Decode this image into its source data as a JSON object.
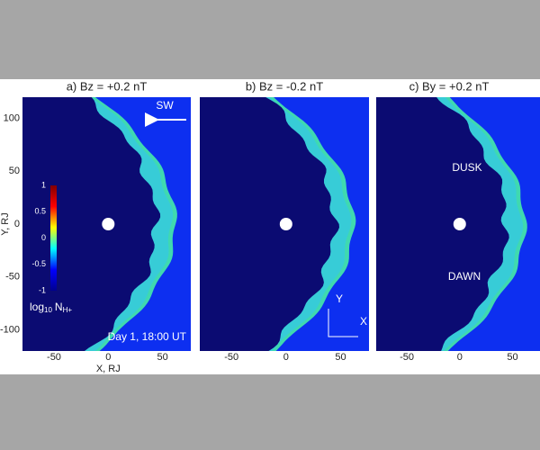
{
  "chart_data": [
    {
      "type": "image",
      "title": "a) Bz = +0.2 nT",
      "xlabel": "X, RJ",
      "ylabel": "Y, RJ",
      "xlim": [
        -79,
        76
      ],
      "ylim": [
        -120,
        120
      ],
      "xticks": [
        -50,
        0,
        50
      ],
      "yticks": [
        -100,
        -50,
        0,
        50,
        100
      ],
      "annotations": [
        "SW",
        "Day 1, 18:00 UT"
      ],
      "colorbar": {
        "label": "log",
        "label_sub": "10",
        "label_var": "N",
        "label_var_sub": "H+",
        "lim": [
          -1,
          1
        ],
        "ticks": [
          -1,
          -0.5,
          0,
          0.5,
          1
        ],
        "colors": [
          "#00008f",
          "#0000ff",
          "#00ffff",
          "#ffff00",
          "#ff0000",
          "#800000"
        ]
      }
    },
    {
      "type": "image",
      "title": "b) Bz = -0.2 nT",
      "xlim": [
        -79,
        76
      ],
      "ylim": [
        -120,
        120
      ],
      "xticks": [
        -50,
        0,
        50
      ],
      "annotations": [
        "Y",
        "X"
      ]
    },
    {
      "type": "image",
      "title": "c) By = +0.2 nT",
      "xlim": [
        -79,
        76
      ],
      "ylim": [
        -120,
        120
      ],
      "xticks": [
        -50,
        0,
        50
      ],
      "annotations": [
        "DUSK",
        "DAWN"
      ]
    }
  ]
}
